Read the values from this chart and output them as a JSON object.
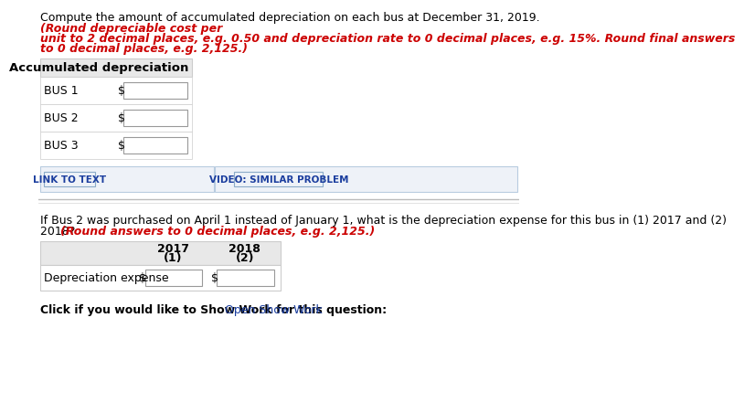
{
  "title_black": "Compute the amount of accumulated depreciation on each bus at December 31, 2019. ",
  "title_red_line1": "(Round depreciable cost per",
  "title_red_line2": "unit to 2 decimal places, e.g. 0.50 and depreciation rate to 0 decimal places, e.g. 15%. Round final answers",
  "title_red_line3": "to 0 decimal places, e.g. 2,125.)",
  "section1_header": "Accumulated depreciation",
  "bus_labels": [
    "BUS 1",
    "BUS 2",
    "BUS 3"
  ],
  "link_text": "LINK TO TEXT",
  "video_text": "VIDEO: SIMILAR PROBLEM",
  "q2_line1": "If Bus 2 was purchased on April 1 instead of January 1, what is the depreciation expense for this bus in (1) 2017 and (2)",
  "q2_line2_black": "2018? ",
  "q2_line2_red": "(Round answers to 0 decimal places, e.g. 2,125.)",
  "col1_header_line1": "(1)",
  "col1_header_line2": "2017",
  "col2_header_line1": "(2)",
  "col2_header_line2": "2018",
  "row_label": "Depreciation expense",
  "footer_black": "Click if you would like to Show Work for this question: ",
  "footer_link": "Open Show Work",
  "bg_color": "#ffffff",
  "header_bg": "#e8e8e8",
  "link_bg": "#eef2f8",
  "red_color": "#cc0000",
  "blue_color": "#1a3d9e",
  "text_color": "#000000",
  "font_size": 9.0,
  "font_size_header": 9.5
}
